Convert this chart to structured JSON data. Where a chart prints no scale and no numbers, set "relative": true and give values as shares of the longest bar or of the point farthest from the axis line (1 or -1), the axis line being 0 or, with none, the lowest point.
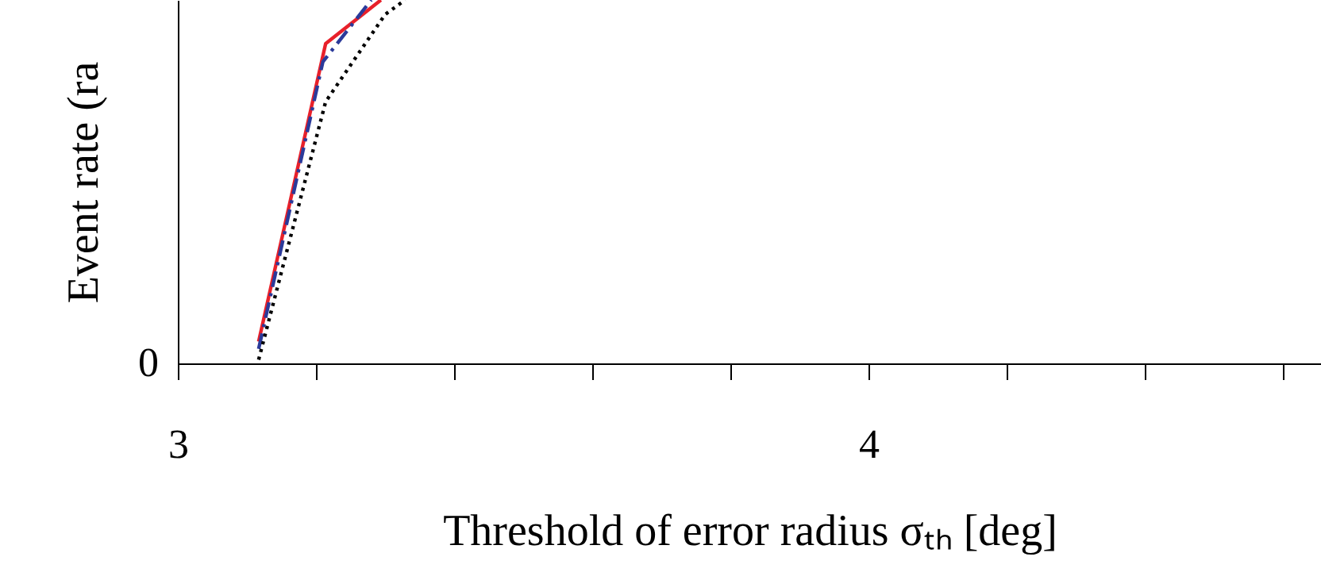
{
  "chart_data": {
    "type": "line",
    "relative": true,
    "xlabel": "Threshold of error radius σₜₕ [deg]",
    "ylabel": "Event rate (ra",
    "xlim": [
      3,
      4.655
    ],
    "xticks": [
      3,
      {
        "value": 3.2,
        "label": null
      },
      {
        "value": 3.4,
        "label": null
      },
      {
        "value": 3.6,
        "label": null
      },
      {
        "value": 3.8,
        "label": null
      },
      4,
      {
        "value": 4.2,
        "label": null
      },
      {
        "value": 4.4,
        "label": null
      },
      {
        "value": 4.6,
        "label": null
      }
    ],
    "annotations": [
      "0"
    ],
    "grid": false,
    "legend": false,
    "series": [
      {
        "color": "#e8202a",
        "line_style": "solid",
        "x": [
          3.117,
          3.214,
          3.294
        ],
        "values": [
          0.06,
          0.88,
          1.0
        ]
      },
      {
        "color": "#2b3a9a",
        "line_style": "dashed",
        "x": [
          3.117,
          3.21,
          3.28
        ],
        "values": [
          0.04,
          0.83,
          1.0
        ]
      },
      {
        "color": "#000000",
        "line_style": "dotted",
        "x": [
          3.117,
          3.214,
          3.3,
          3.329
        ],
        "values": [
          0.01,
          0.72,
          0.96,
          1.0
        ]
      }
    ]
  }
}
